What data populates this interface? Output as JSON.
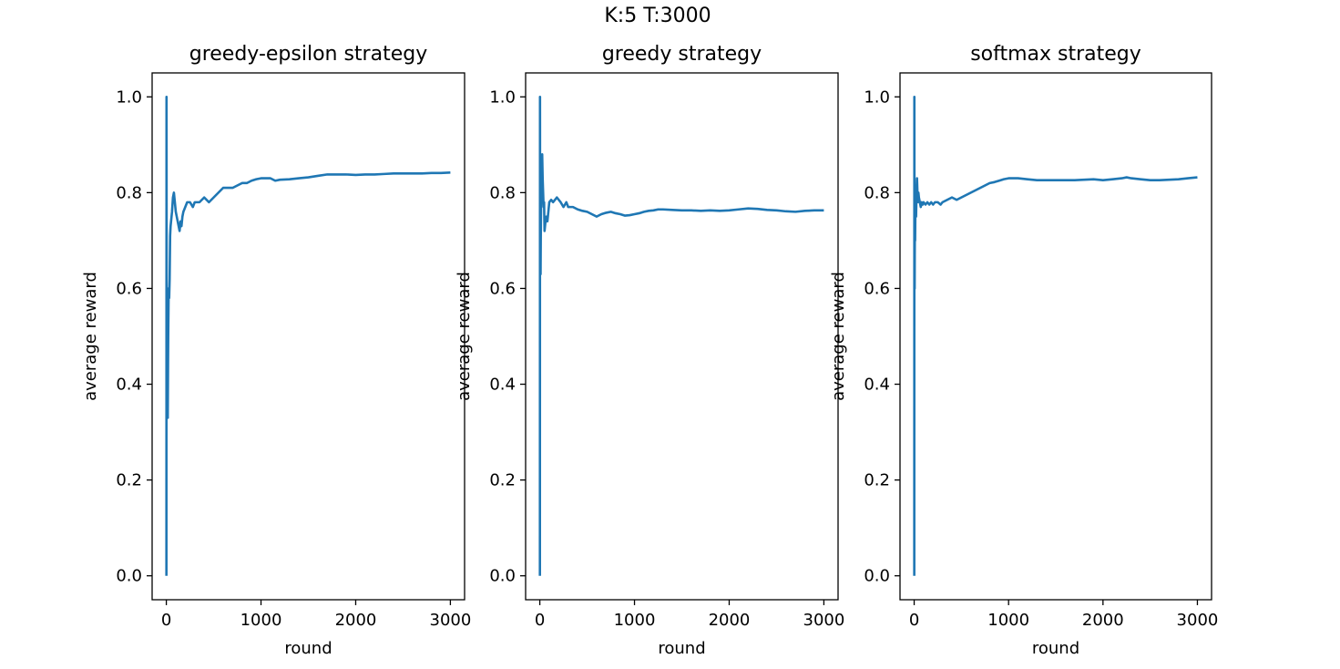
{
  "figure": {
    "suptitle": "K:5   T:3000",
    "line_color": "#1f77b4"
  },
  "chart_data": [
    {
      "type": "line",
      "title": "greedy-epsilon strategy",
      "xlabel": "round",
      "ylabel": "average reward",
      "xlim": [
        -150,
        3150
      ],
      "ylim": [
        -0.05,
        1.05
      ],
      "xticks": [
        0,
        1000,
        2000,
        3000
      ],
      "yticks": [
        0.0,
        0.2,
        0.4,
        0.6,
        0.8,
        1.0
      ],
      "xtick_labels": [
        "0",
        "1000",
        "2000",
        "3000"
      ],
      "ytick_labels": [
        "0.0",
        "0.2",
        "0.4",
        "0.6",
        "0.8",
        "1.0"
      ],
      "grid": false,
      "series": [
        {
          "x": [
            1,
            2,
            3,
            4,
            5,
            6,
            8,
            10,
            12,
            15,
            18,
            20,
            25,
            30,
            35,
            40,
            45,
            50,
            55,
            60,
            70,
            80,
            90,
            100,
            110,
            120,
            130,
            140,
            150,
            160,
            170,
            180,
            200,
            220,
            250,
            280,
            300,
            350,
            400,
            450,
            500,
            550,
            600,
            650,
            700,
            750,
            800,
            850,
            900,
            950,
            1000,
            1050,
            1100,
            1150,
            1200,
            1300,
            1400,
            1500,
            1600,
            1700,
            1800,
            1900,
            2000,
            2100,
            2200,
            2300,
            2400,
            2500,
            2600,
            2700,
            2800,
            2900,
            3000
          ],
          "y": [
            0.0,
            1.0,
            0.67,
            0.5,
            0.6,
            0.5,
            0.5,
            0.4,
            0.33,
            0.33,
            0.44,
            0.5,
            0.6,
            0.58,
            0.62,
            0.71,
            0.73,
            0.74,
            0.75,
            0.76,
            0.79,
            0.8,
            0.78,
            0.76,
            0.75,
            0.74,
            0.73,
            0.72,
            0.74,
            0.73,
            0.75,
            0.76,
            0.77,
            0.78,
            0.78,
            0.77,
            0.78,
            0.78,
            0.79,
            0.78,
            0.79,
            0.8,
            0.81,
            0.81,
            0.81,
            0.815,
            0.82,
            0.82,
            0.825,
            0.828,
            0.83,
            0.83,
            0.83,
            0.825,
            0.827,
            0.828,
            0.83,
            0.832,
            0.835,
            0.838,
            0.838,
            0.838,
            0.837,
            0.838,
            0.838,
            0.839,
            0.84,
            0.84,
            0.84,
            0.84,
            0.841,
            0.841,
            0.842
          ]
        }
      ]
    },
    {
      "type": "line",
      "title": "greedy strategy",
      "xlabel": "round",
      "ylabel": "average reward",
      "xlim": [
        -150,
        3150
      ],
      "ylim": [
        -0.05,
        1.05
      ],
      "xticks": [
        0,
        1000,
        2000,
        3000
      ],
      "yticks": [
        0.0,
        0.2,
        0.4,
        0.6,
        0.8,
        1.0
      ],
      "xtick_labels": [
        "0",
        "1000",
        "2000",
        "3000"
      ],
      "ytick_labels": [
        "0.0",
        "0.2",
        "0.4",
        "0.6",
        "0.8",
        "1.0"
      ],
      "grid": false,
      "series": [
        {
          "x": [
            1,
            2,
            3,
            4,
            5,
            6,
            8,
            10,
            12,
            15,
            18,
            20,
            25,
            30,
            35,
            40,
            45,
            50,
            55,
            60,
            70,
            80,
            90,
            100,
            120,
            140,
            160,
            180,
            200,
            220,
            250,
            280,
            300,
            350,
            400,
            450,
            500,
            550,
            600,
            650,
            700,
            750,
            800,
            850,
            900,
            950,
            1000,
            1050,
            1100,
            1150,
            1200,
            1250,
            1300,
            1400,
            1500,
            1600,
            1700,
            1800,
            1900,
            2000,
            2100,
            2200,
            2300,
            2400,
            2500,
            2600,
            2700,
            2800,
            2900,
            3000
          ],
          "y": [
            0.0,
            1.0,
            0.67,
            0.75,
            0.8,
            0.67,
            0.63,
            0.7,
            0.75,
            0.8,
            0.83,
            0.85,
            0.88,
            0.83,
            0.8,
            0.77,
            0.78,
            0.72,
            0.73,
            0.74,
            0.75,
            0.74,
            0.76,
            0.78,
            0.785,
            0.78,
            0.785,
            0.79,
            0.785,
            0.78,
            0.77,
            0.78,
            0.77,
            0.77,
            0.765,
            0.762,
            0.76,
            0.755,
            0.75,
            0.755,
            0.758,
            0.76,
            0.757,
            0.755,
            0.752,
            0.753,
            0.755,
            0.757,
            0.76,
            0.762,
            0.763,
            0.765,
            0.765,
            0.764,
            0.763,
            0.763,
            0.762,
            0.763,
            0.762,
            0.763,
            0.765,
            0.767,
            0.766,
            0.764,
            0.763,
            0.761,
            0.76,
            0.762,
            0.763,
            0.763
          ]
        }
      ]
    },
    {
      "type": "line",
      "title": "softmax strategy",
      "xlabel": "round",
      "ylabel": "average reward",
      "xlim": [
        -150,
        3150
      ],
      "ylim": [
        -0.05,
        1.05
      ],
      "xticks": [
        0,
        1000,
        2000,
        3000
      ],
      "yticks": [
        0.0,
        0.2,
        0.4,
        0.6,
        0.8,
        1.0
      ],
      "xtick_labels": [
        "0",
        "1000",
        "2000",
        "3000"
      ],
      "ytick_labels": [
        "0.0",
        "0.2",
        "0.4",
        "0.6",
        "0.8",
        "1.0"
      ],
      "grid": false,
      "series": [
        {
          "x": [
            1,
            2,
            3,
            4,
            5,
            6,
            8,
            10,
            12,
            15,
            18,
            20,
            25,
            30,
            35,
            40,
            45,
            50,
            60,
            70,
            80,
            90,
            100,
            120,
            140,
            160,
            180,
            200,
            220,
            250,
            280,
            300,
            350,
            400,
            450,
            500,
            550,
            600,
            650,
            700,
            750,
            800,
            850,
            900,
            950,
            1000,
            1100,
            1200,
            1300,
            1400,
            1500,
            1600,
            1700,
            1800,
            1900,
            2000,
            2100,
            2200,
            2250,
            2300,
            2400,
            2500,
            2600,
            2700,
            2800,
            2900,
            3000
          ],
          "y": [
            0.0,
            1.0,
            0.67,
            0.75,
            0.6,
            0.67,
            0.75,
            0.7,
            0.75,
            0.8,
            0.78,
            0.75,
            0.8,
            0.83,
            0.8,
            0.78,
            0.8,
            0.79,
            0.78,
            0.77,
            0.78,
            0.775,
            0.78,
            0.775,
            0.78,
            0.775,
            0.78,
            0.775,
            0.78,
            0.78,
            0.775,
            0.78,
            0.785,
            0.79,
            0.785,
            0.79,
            0.795,
            0.8,
            0.805,
            0.81,
            0.815,
            0.82,
            0.822,
            0.825,
            0.828,
            0.83,
            0.83,
            0.828,
            0.826,
            0.826,
            0.826,
            0.826,
            0.826,
            0.827,
            0.828,
            0.826,
            0.828,
            0.83,
            0.832,
            0.83,
            0.828,
            0.826,
            0.826,
            0.827,
            0.828,
            0.83,
            0.832
          ]
        }
      ]
    }
  ]
}
